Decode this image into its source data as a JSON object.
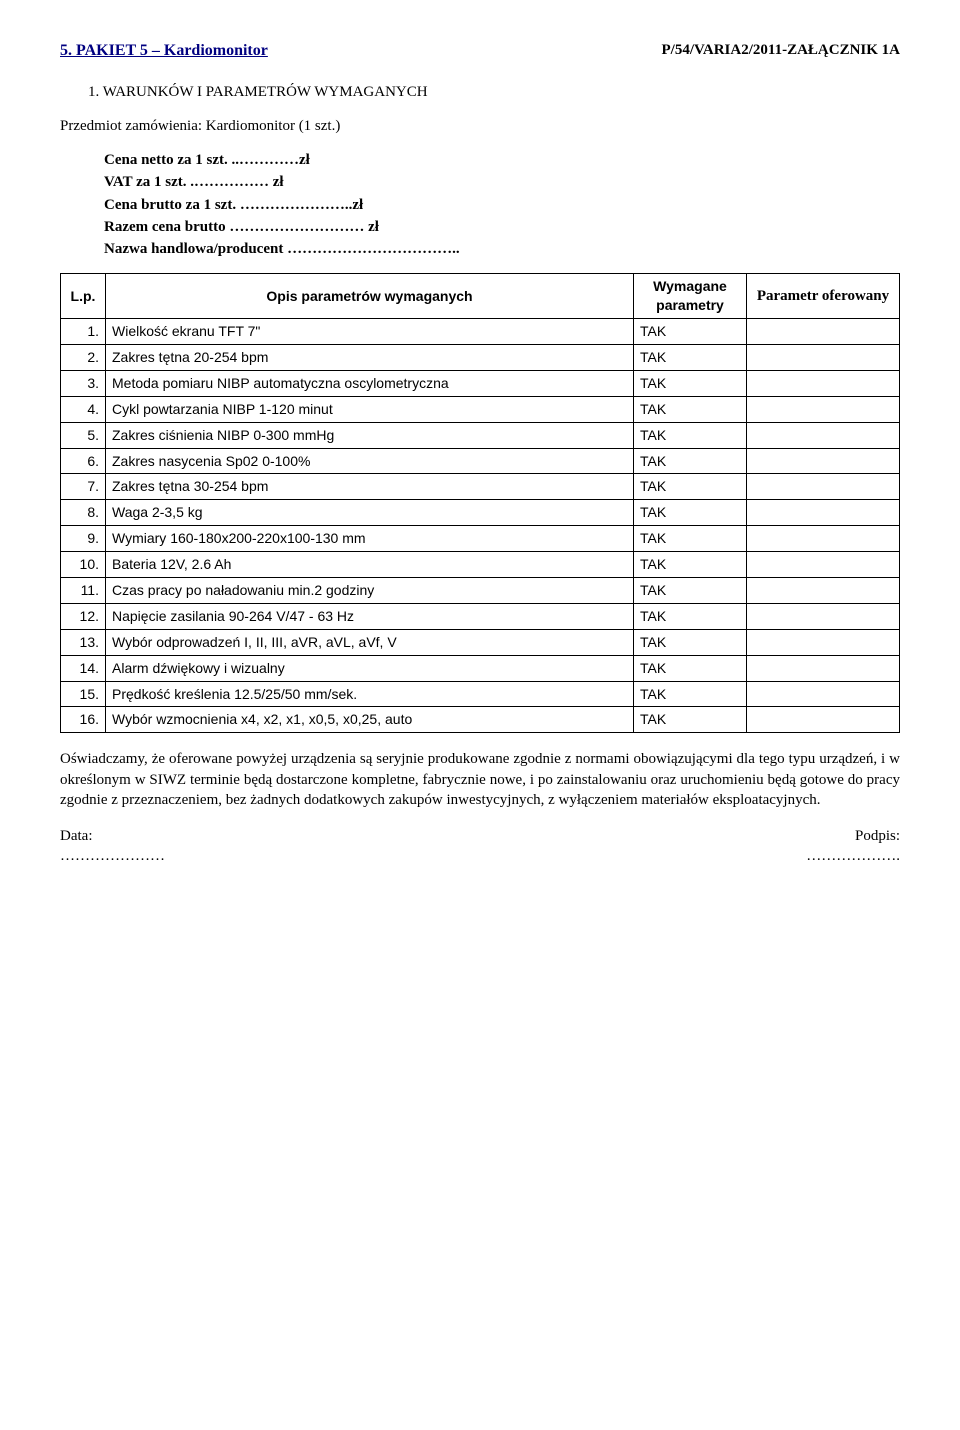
{
  "header": {
    "title": "5. PAKIET 5 – Kardiomonitor",
    "attachment": "P/54/VARIA2/2011-ZAŁĄCZNIK 1A"
  },
  "section_heading": "1.  WARUNKÓW I PARAMETRÓW WYMAGANYCH",
  "subject": "Przedmiot zamówienia: Kardiomonitor (1 szt.)",
  "prices": {
    "netto": "Cena netto za 1 szt. ..…………zł",
    "vat": "VAT      za 1 szt. .…………… zł",
    "brutto": "Cena brutto za 1 szt. …………………..zł",
    "razem": "Razem cena brutto ……………………… zł",
    "nazwa": "Nazwa handlowa/producent …………………………….."
  },
  "table": {
    "columns": {
      "lp": "L.p.",
      "opis": "Opis parametrów  wymaganych",
      "wymagane": "Wymagane parametry",
      "oferowany": "Parametr oferowany"
    },
    "rows": [
      {
        "n": "1.",
        "d": "Wielkość ekranu TFT 7\"",
        "r": "TAK"
      },
      {
        "n": "2.",
        "d": "Zakres tętna 20-254 bpm",
        "r": "TAK"
      },
      {
        "n": "3.",
        "d": "Metoda pomiaru NIBP automatyczna oscylometryczna",
        "r": "TAK"
      },
      {
        "n": "4.",
        "d": "Cykl powtarzania NIBP 1-120 minut",
        "r": "TAK"
      },
      {
        "n": "5.",
        "d": "Zakres ciśnienia NIBP 0-300 mmHg",
        "r": "TAK"
      },
      {
        "n": "6.",
        "d": "Zakres nasycenia Sp02 0-100%",
        "r": "TAK"
      },
      {
        "n": "7.",
        "d": "Zakres tętna 30-254 bpm",
        "r": "TAK"
      },
      {
        "n": "8.",
        "d": "Waga 2-3,5 kg",
        "r": "TAK"
      },
      {
        "n": "9.",
        "d": "Wymiary 160-180x200-220x100-130 mm",
        "r": "TAK"
      },
      {
        "n": "10.",
        "d": "Bateria 12V, 2.6 Ah",
        "r": "TAK"
      },
      {
        "n": "11.",
        "d": "Czas pracy po naładowaniu min.2 godziny",
        "r": "TAK"
      },
      {
        "n": "12.",
        "d": "Napięcie zasilania 90-264 V/47 - 63 Hz",
        "r": "TAK"
      },
      {
        "n": "13.",
        "d": "Wybór odprowadzeń I, II, III, aVR, aVL, aVf, V",
        "r": "TAK"
      },
      {
        "n": "14.",
        "d": "Alarm dźwiękowy i wizualny",
        "r": "TAK"
      },
      {
        "n": "15.",
        "d": "Prędkość kreślenia 12.5/25/50 mm/sek.",
        "r": "TAK"
      },
      {
        "n": "16.",
        "d": "Wybór wzmocnienia x4, x2, x1, x0,5, x0,25, auto",
        "r": "TAK"
      }
    ]
  },
  "declaration": "Oświadczamy, że oferowane powyżej urządzenia są seryjnie produkowane zgodnie z normami obowiązującymi dla tego typu urządzeń, i w określonym w SIWZ terminie będą dostarczone kompletne, fabrycznie nowe, i po zainstalowaniu oraz uruchomieniu będą gotowe do pracy zgodnie z przeznaczeniem, bez żadnych dodatkowych zakupów inwestycyjnych, z wyłączeniem materiałów eksploatacyjnych.",
  "signatures": {
    "data_label": "Data:",
    "podpis_label": "Podpis:",
    "dots_left": "…………………",
    "dots_right": "………………."
  }
}
